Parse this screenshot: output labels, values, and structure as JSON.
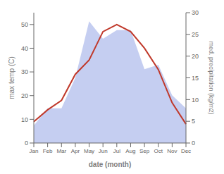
{
  "chart_data": {
    "type": "line",
    "categories": [
      "Jan",
      "Feb",
      "Mar",
      "Apr",
      "May",
      "Jun",
      "Jul",
      "Aug",
      "Sep",
      "Oct",
      "Nov",
      "Dec"
    ],
    "xlabel": "date (month)",
    "ylabel": "max temp (C)",
    "y2label": "med. precipitation (kg/m2)",
    "ylim": [
      0,
      55
    ],
    "yticks": [
      0,
      10,
      20,
      30,
      40,
      50
    ],
    "y2lim": [
      0,
      30
    ],
    "y2ticks": [
      0,
      5,
      10,
      15,
      20,
      25,
      30
    ],
    "grid": false,
    "series": [
      {
        "type": "area",
        "axis": "y2",
        "color": "#bfc9f0",
        "values": [
          4,
          8,
          8,
          15,
          28,
          24,
          26,
          26,
          17,
          18,
          11,
          8
        ]
      },
      {
        "type": "line",
        "color": "#c0392b",
        "values": [
          9,
          14,
          18,
          29,
          35,
          47,
          50,
          47,
          40,
          31,
          17,
          8
        ]
      }
    ]
  }
}
